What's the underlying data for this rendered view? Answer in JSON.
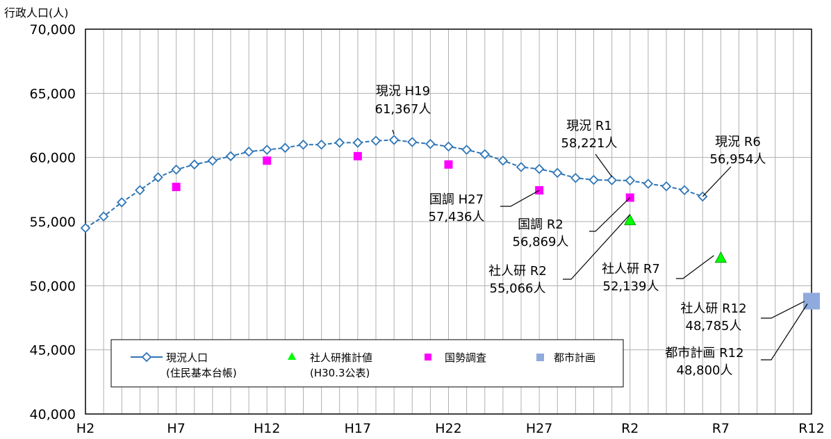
{
  "chart_data": {
    "type": "line",
    "ylabel": "行政人口(人)",
    "ylim": [
      40000,
      70000
    ],
    "yticks": [
      "40,000",
      "45,000",
      "50,000",
      "55,000",
      "60,000",
      "65,000",
      "70,000"
    ],
    "xticks": [
      "H2",
      "H7",
      "H12",
      "H17",
      "H22",
      "H27",
      "R2",
      "R7",
      "R12"
    ],
    "grid": true,
    "legend_position": "bottom-left",
    "colors": {
      "current": "#2e75b6",
      "ipss": "#00ff00",
      "census": "#ff00ff",
      "plan": "#8faadc"
    },
    "series": [
      {
        "name": "現況人口",
        "name_sub": "(住民基本台帳)",
        "marker": "diamond-open",
        "x": [
          "H2",
          "H3",
          "H4",
          "H5",
          "H6",
          "H7",
          "H8",
          "H9",
          "H10",
          "H11",
          "H12",
          "H13",
          "H14",
          "H15",
          "H16",
          "H17",
          "H18",
          "H19",
          "H20",
          "H21",
          "H22",
          "H23",
          "H24",
          "H25",
          "H26",
          "H27",
          "H28",
          "H29",
          "H30",
          "H31/R1",
          "R2",
          "R3",
          "R4",
          "R5",
          "R6"
        ],
        "values": [
          54500,
          55400,
          56500,
          57450,
          58450,
          59050,
          59450,
          59750,
          60100,
          60450,
          60600,
          60750,
          61000,
          61000,
          61150,
          61150,
          61300,
          61367,
          61200,
          61050,
          60850,
          60600,
          60250,
          59750,
          59250,
          59100,
          58800,
          58400,
          58250,
          58221,
          58200,
          57950,
          57750,
          57450,
          56954
        ]
      },
      {
        "name": "社人研推計値",
        "name_sub": "(H30.3公表)",
        "marker": "triangle",
        "x": [
          "R2",
          "R7"
        ],
        "values": [
          55066,
          52139
        ]
      },
      {
        "name": "国勢調査",
        "name_sub": "",
        "marker": "square",
        "x": [
          "H7",
          "H12",
          "H17",
          "H22",
          "H27",
          "R2"
        ],
        "values": [
          57700,
          59750,
          60100,
          59450,
          57436,
          56869
        ]
      },
      {
        "name": "都市計画",
        "name_sub": "",
        "marker": "square-large",
        "x": [
          "R12"
        ],
        "values": [
          48800
        ]
      }
    ],
    "annotations": [
      {
        "label": "現況 H19",
        "value": "61,367人"
      },
      {
        "label": "現況 R1",
        "value": "58,221人"
      },
      {
        "label": "現況 R6",
        "value": "56,954人"
      },
      {
        "label": "国調 H27",
        "value": "57,436人"
      },
      {
        "label": "国調 R2",
        "value": "56,869人"
      },
      {
        "label": "社人研 R2",
        "value": "55,066人"
      },
      {
        "label": "社人研 R7",
        "value": "52,139人"
      },
      {
        "label": "社人研 R12",
        "value": "48,785人"
      },
      {
        "label": "都市計画 R12",
        "value": "48,800人"
      }
    ]
  }
}
